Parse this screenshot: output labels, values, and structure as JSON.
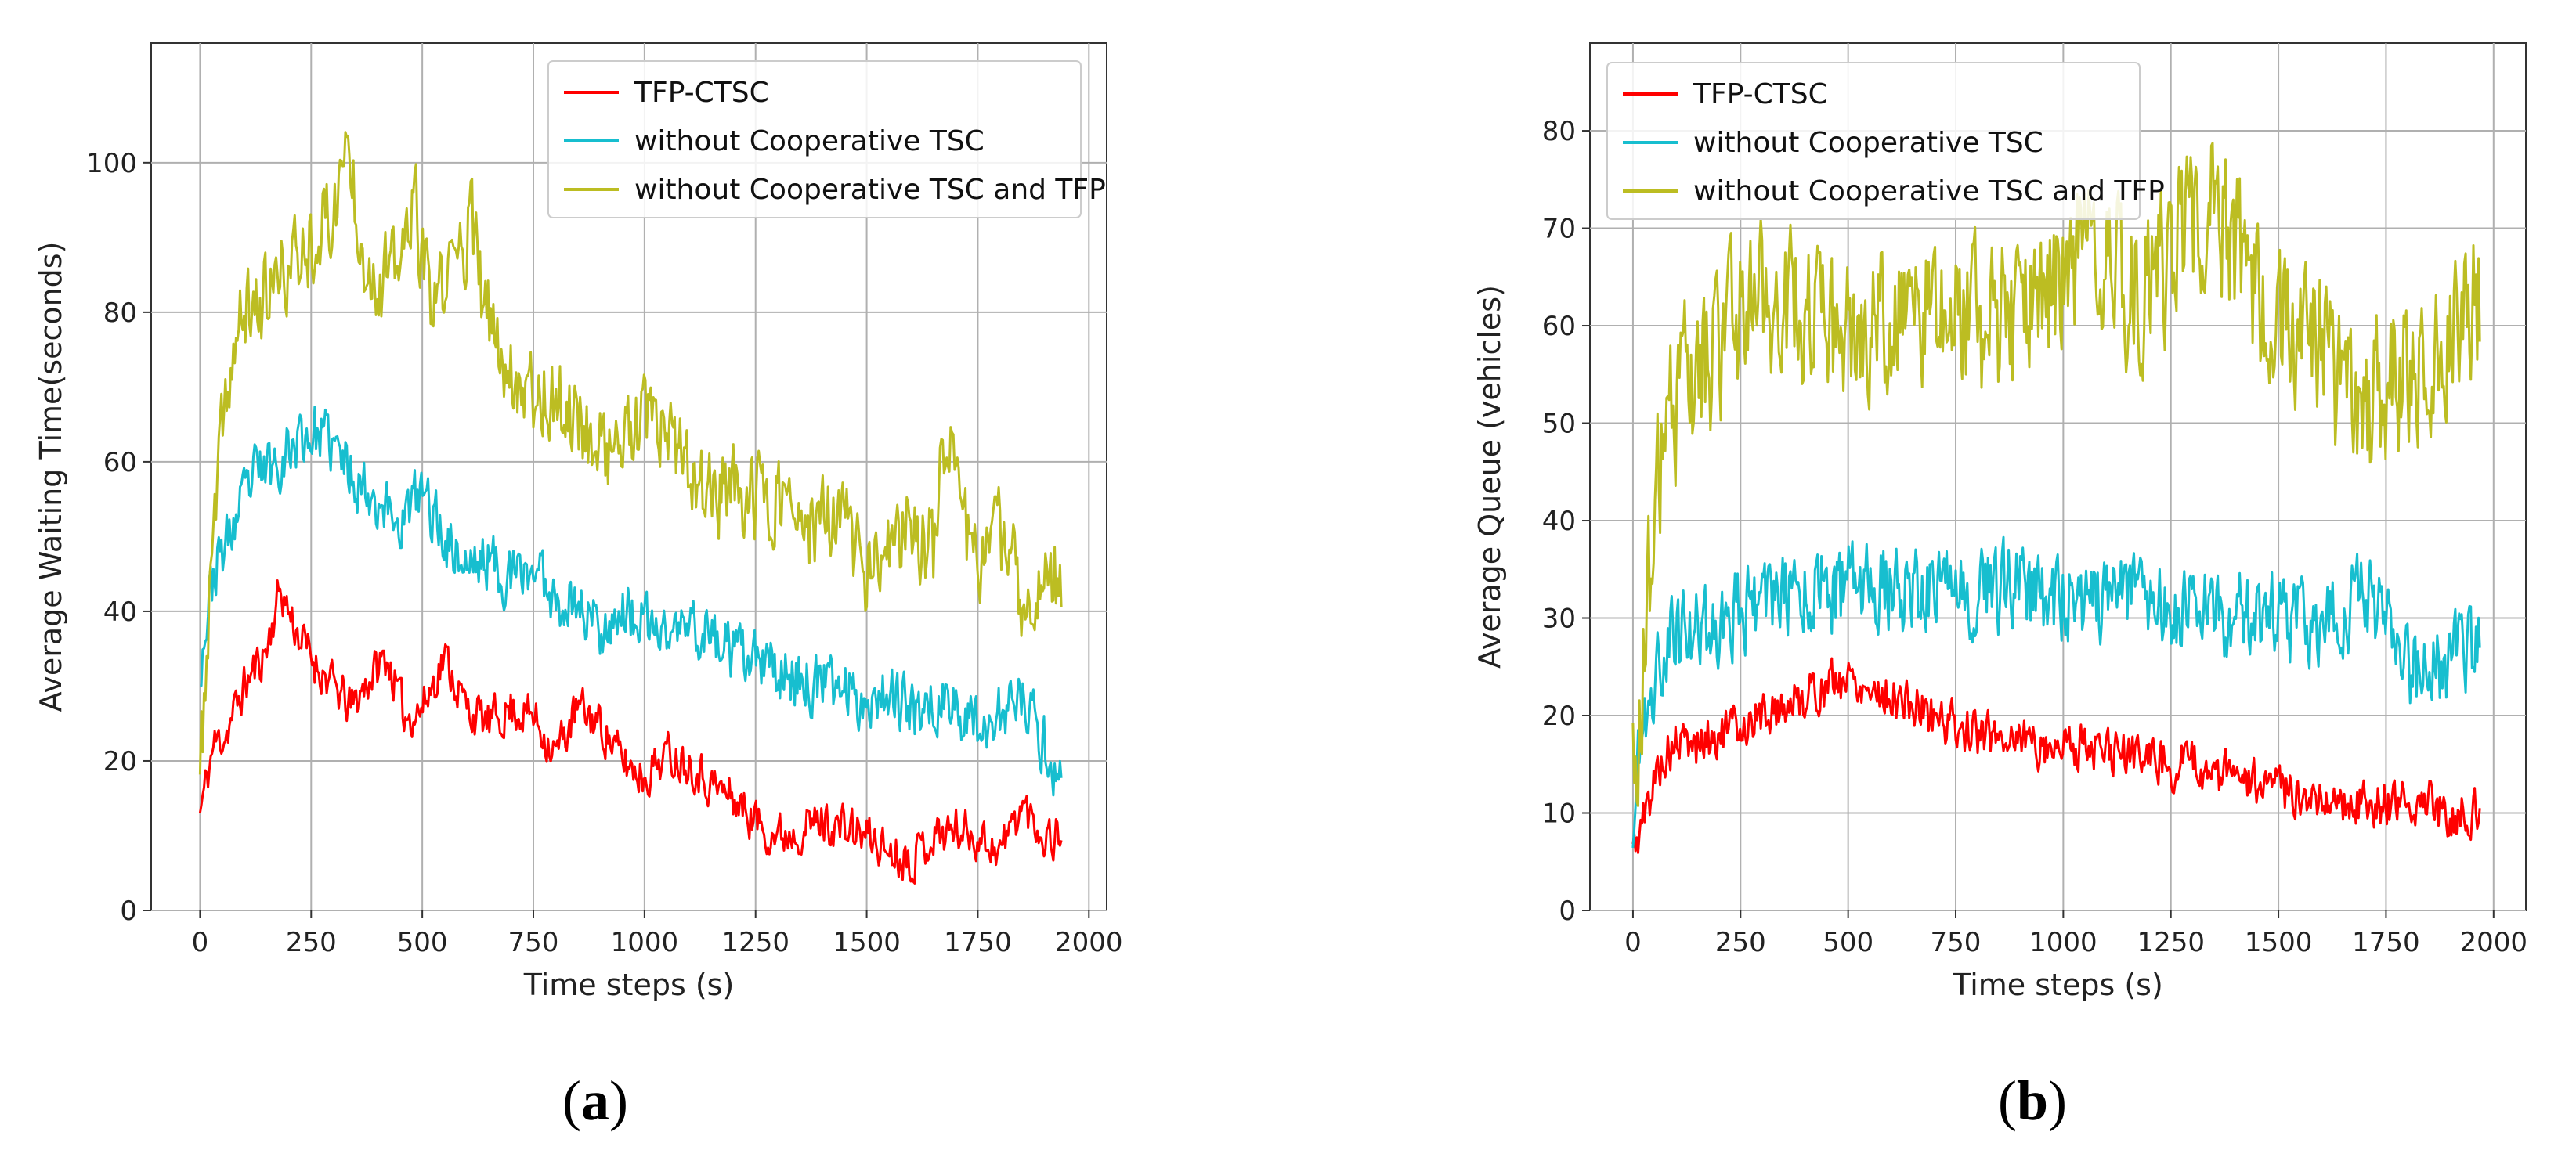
{
  "chart_data": [
    {
      "type": "line",
      "panel_label_open": "(",
      "panel_label": "a",
      "panel_label_close": ")",
      "xlabel": "Time steps (s)",
      "ylabel": "Average Waiting Time(seconds)",
      "xlim": [
        -110,
        2040
      ],
      "ylim": [
        0,
        116
      ],
      "xticks": [
        0,
        250,
        500,
        750,
        1000,
        1250,
        1500,
        1750,
        2000
      ],
      "yticks": [
        0,
        20,
        40,
        60,
        80,
        100
      ],
      "grid": true,
      "legend_position": "top-right",
      "x_end": 1940,
      "series": [
        {
          "name": "TFP-CTSC",
          "color": "#ff0000",
          "anchors": [
            [
              0,
              13
            ],
            [
              30,
              22
            ],
            [
              60,
              24
            ],
            [
              100,
              30
            ],
            [
              150,
              35
            ],
            [
              180,
              43
            ],
            [
              220,
              37
            ],
            [
              260,
              33
            ],
            [
              300,
              30
            ],
            [
              340,
              27
            ],
            [
              380,
              31
            ],
            [
              420,
              34
            ],
            [
              460,
              26
            ],
            [
              500,
              27
            ],
            [
              550,
              34
            ],
            [
              600,
              27
            ],
            [
              650,
              25
            ],
            [
              700,
              27
            ],
            [
              750,
              26
            ],
            [
              800,
              21
            ],
            [
              850,
              27
            ],
            [
              900,
              25
            ],
            [
              950,
              20
            ],
            [
              1000,
              18
            ],
            [
              1050,
              21
            ],
            [
              1100,
              20
            ],
            [
              1150,
              17
            ],
            [
              1200,
              15
            ],
            [
              1250,
              12
            ],
            [
              1300,
              10
            ],
            [
              1350,
              11
            ],
            [
              1400,
              12
            ],
            [
              1450,
              11
            ],
            [
              1500,
              10
            ],
            [
              1550,
              8
            ],
            [
              1600,
              7
            ],
            [
              1650,
              10
            ],
            [
              1700,
              11
            ],
            [
              1750,
              10
            ],
            [
              1800,
              8
            ],
            [
              1850,
              14
            ],
            [
              1900,
              10
            ],
            [
              1940,
              10
            ]
          ],
          "noise": 3,
          "seed": 11
        },
        {
          "name": "without Cooperative TSC",
          "color": "#17becf",
          "anchors": [
            [
              0,
              33
            ],
            [
              30,
              45
            ],
            [
              80,
              52
            ],
            [
              120,
              58
            ],
            [
              170,
              60
            ],
            [
              220,
              63
            ],
            [
              260,
              64
            ],
            [
              300,
              62
            ],
            [
              350,
              58
            ],
            [
              400,
              55
            ],
            [
              450,
              52
            ],
            [
              500,
              56
            ],
            [
              550,
              50
            ],
            [
              600,
              46
            ],
            [
              650,
              47
            ],
            [
              700,
              44
            ],
            [
              750,
              46
            ],
            [
              800,
              42
            ],
            [
              850,
              41
            ],
            [
              900,
              38
            ],
            [
              950,
              40
            ],
            [
              1000,
              38
            ],
            [
              1050,
              37
            ],
            [
              1100,
              38
            ],
            [
              1150,
              37
            ],
            [
              1200,
              34
            ],
            [
              1250,
              33
            ],
            [
              1300,
              32
            ],
            [
              1350,
              31
            ],
            [
              1400,
              30
            ],
            [
              1450,
              30
            ],
            [
              1500,
              28
            ],
            [
              1550,
              30
            ],
            [
              1600,
              26
            ],
            [
              1650,
              28
            ],
            [
              1700,
              27
            ],
            [
              1750,
              25
            ],
            [
              1800,
              26
            ],
            [
              1850,
              28
            ],
            [
              1900,
              22
            ],
            [
              1940,
              17
            ]
          ],
          "noise": 4,
          "seed": 23
        },
        {
          "name": "without Cooperative TSC and TFP",
          "color": "#bcbd22",
          "anchors": [
            [
              0,
              18
            ],
            [
              30,
              50
            ],
            [
              60,
              70
            ],
            [
              100,
              80
            ],
            [
              150,
              82
            ],
            [
              200,
              86
            ],
            [
              250,
              90
            ],
            [
              300,
              93
            ],
            [
              330,
              103
            ],
            [
              370,
              88
            ],
            [
              400,
              84
            ],
            [
              450,
              86
            ],
            [
              480,
              95
            ],
            [
              520,
              80
            ],
            [
              560,
              85
            ],
            [
              610,
              92
            ],
            [
              640,
              80
            ],
            [
              700,
              72
            ],
            [
              750,
              70
            ],
            [
              800,
              68
            ],
            [
              850,
              66
            ],
            [
              900,
              62
            ],
            [
              950,
              62
            ],
            [
              1000,
              65
            ],
            [
              1050,
              63
            ],
            [
              1100,
              58
            ],
            [
              1150,
              56
            ],
            [
              1200,
              56
            ],
            [
              1250,
              55
            ],
            [
              1300,
              56
            ],
            [
              1350,
              50
            ],
            [
              1400,
              52
            ],
            [
              1450,
              52
            ],
            [
              1500,
              45
            ],
            [
              1550,
              47
            ],
            [
              1600,
              52
            ],
            [
              1650,
              48
            ],
            [
              1680,
              67
            ],
            [
              1720,
              50
            ],
            [
              1760,
              48
            ],
            [
              1800,
              50
            ],
            [
              1850,
              42
            ],
            [
              1900,
              43
            ],
            [
              1940,
              45
            ]
          ],
          "noise": 6,
          "seed": 37
        }
      ]
    },
    {
      "type": "line",
      "panel_label_open": "(",
      "panel_label": "b",
      "panel_label_close": ")",
      "xlabel": "Time steps (s)",
      "ylabel": "Average Queue (vehicles)",
      "xlim": [
        -100,
        2075
      ],
      "ylim": [
        0,
        89
      ],
      "xticks": [
        0,
        250,
        500,
        750,
        1000,
        1250,
        1500,
        1750,
        2000
      ],
      "yticks": [
        0,
        10,
        20,
        30,
        40,
        50,
        60,
        70,
        80
      ],
      "grid": true,
      "legend_position": "top-left",
      "x_end": 1970,
      "series": [
        {
          "name": "TFP-CTSC",
          "color": "#ff0000",
          "anchors": [
            [
              0,
              6
            ],
            [
              30,
              10
            ],
            [
              60,
              15
            ],
            [
              100,
              17
            ],
            [
              150,
              17
            ],
            [
              200,
              18
            ],
            [
              250,
              19
            ],
            [
              300,
              20
            ],
            [
              350,
              21
            ],
            [
              400,
              22
            ],
            [
              450,
              23
            ],
            [
              500,
              24
            ],
            [
              550,
              23
            ],
            [
              600,
              22
            ],
            [
              650,
              21
            ],
            [
              700,
              20
            ],
            [
              750,
              19
            ],
            [
              800,
              18
            ],
            [
              850,
              18
            ],
            [
              900,
              18
            ],
            [
              950,
              17
            ],
            [
              1000,
              17
            ],
            [
              1050,
              17
            ],
            [
              1100,
              16
            ],
            [
              1150,
              16
            ],
            [
              1200,
              16
            ],
            [
              1250,
              15
            ],
            [
              1300,
              15
            ],
            [
              1350,
              14
            ],
            [
              1400,
              14
            ],
            [
              1450,
              13
            ],
            [
              1500,
              12
            ],
            [
              1550,
              12
            ],
            [
              1600,
              12
            ],
            [
              1650,
              11
            ],
            [
              1700,
              11
            ],
            [
              1750,
              11
            ],
            [
              1800,
              11
            ],
            [
              1850,
              11
            ],
            [
              1900,
              10
            ],
            [
              1970,
              10
            ]
          ],
          "noise": 2.4,
          "seed": 5
        },
        {
          "name": "without Cooperative TSC",
          "color": "#17becf",
          "anchors": [
            [
              0,
              10
            ],
            [
              30,
              20
            ],
            [
              60,
              26
            ],
            [
              100,
              28
            ],
            [
              150,
              29
            ],
            [
              200,
              30
            ],
            [
              250,
              31
            ],
            [
              300,
              32
            ],
            [
              350,
              32
            ],
            [
              400,
              33
            ],
            [
              450,
              33
            ],
            [
              500,
              33
            ],
            [
              550,
              33
            ],
            [
              600,
              33
            ],
            [
              650,
              33
            ],
            [
              700,
              33
            ],
            [
              750,
              33
            ],
            [
              800,
              33
            ],
            [
              850,
              33
            ],
            [
              900,
              33
            ],
            [
              950,
              32
            ],
            [
              1000,
              32
            ],
            [
              1050,
              32
            ],
            [
              1100,
              32
            ],
            [
              1150,
              33
            ],
            [
              1200,
              32
            ],
            [
              1250,
              31
            ],
            [
              1300,
              31
            ],
            [
              1350,
              30
            ],
            [
              1400,
              30
            ],
            [
              1450,
              30
            ],
            [
              1500,
              30
            ],
            [
              1550,
              30
            ],
            [
              1600,
              30
            ],
            [
              1650,
              31
            ],
            [
              1700,
              32
            ],
            [
              1750,
              30
            ],
            [
              1800,
              25
            ],
            [
              1850,
              24
            ],
            [
              1900,
              26
            ],
            [
              1970,
              28
            ]
          ],
          "noise": 4.5,
          "seed": 19
        },
        {
          "name": "without Cooperative TSC and TFP",
          "color": "#bcbd22",
          "anchors": [
            [
              0,
              12
            ],
            [
              30,
              30
            ],
            [
              60,
              45
            ],
            [
              100,
              52
            ],
            [
              150,
              55
            ],
            [
              200,
              57
            ],
            [
              250,
              62
            ],
            [
              300,
              64
            ],
            [
              350,
              63
            ],
            [
              400,
              60
            ],
            [
              450,
              58
            ],
            [
              500,
              58
            ],
            [
              550,
              59
            ],
            [
              600,
              62
            ],
            [
              650,
              61
            ],
            [
              700,
              61
            ],
            [
              750,
              62
            ],
            [
              800,
              60
            ],
            [
              850,
              60
            ],
            [
              900,
              60
            ],
            [
              950,
              63
            ],
            [
              1000,
              65
            ],
            [
              1050,
              67
            ],
            [
              1100,
              68
            ],
            [
              1150,
              64
            ],
            [
              1200,
              64
            ],
            [
              1250,
              67
            ],
            [
              1300,
              70
            ],
            [
              1350,
              72
            ],
            [
              1400,
              68
            ],
            [
              1450,
              62
            ],
            [
              1500,
              62
            ],
            [
              1550,
              60
            ],
            [
              1600,
              58
            ],
            [
              1650,
              52
            ],
            [
              1700,
              50
            ],
            [
              1750,
              54
            ],
            [
              1800,
              56
            ],
            [
              1850,
              58
            ],
            [
              1900,
              60
            ],
            [
              1970,
              63
            ]
          ],
          "noise": 8,
          "seed": 43
        }
      ]
    }
  ]
}
